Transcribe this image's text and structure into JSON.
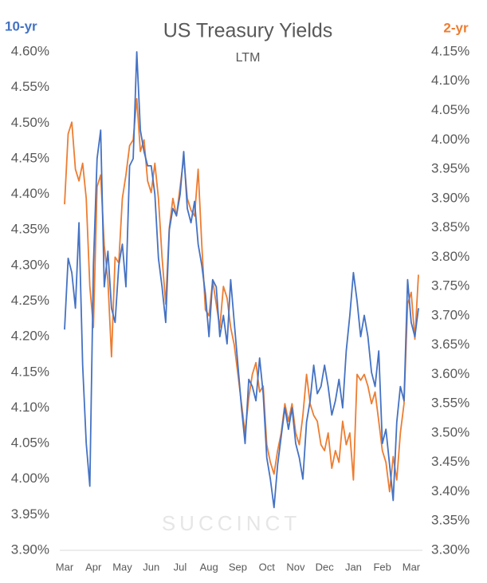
{
  "chart_data": {
    "type": "line",
    "title": "US Treasury Yields",
    "subtitle": "LTM",
    "y_label": "10-yr",
    "y2_label": "2-yr",
    "watermark": "SUCCINCT",
    "categories": [
      "Mar",
      null,
      null,
      null,
      null,
      null,
      null,
      null,
      "Apr",
      null,
      null,
      null,
      null,
      null,
      null,
      null,
      "May",
      null,
      null,
      null,
      null,
      null,
      null,
      null,
      "Jun",
      null,
      null,
      null,
      null,
      null,
      null,
      null,
      "Jul",
      null,
      null,
      null,
      null,
      null,
      null,
      null,
      "Aug",
      null,
      null,
      null,
      null,
      null,
      null,
      null,
      "Sep",
      null,
      null,
      null,
      null,
      null,
      null,
      null,
      "Oct",
      null,
      null,
      null,
      null,
      null,
      null,
      null,
      "Nov",
      null,
      null,
      null,
      null,
      null,
      null,
      null,
      "Dec",
      null,
      null,
      null,
      null,
      null,
      null,
      null,
      "Jan",
      null,
      null,
      null,
      null,
      null,
      null,
      null,
      "Feb",
      null,
      null,
      null,
      null,
      null,
      null,
      null,
      "Mar",
      null,
      null
    ],
    "series": [
      {
        "name": "10-yr",
        "color": "#4472c4",
        "values": [
          4.21,
          4.31,
          4.29,
          4.24,
          4.36,
          4.16,
          4.05,
          3.99,
          4.3,
          4.45,
          4.49,
          4.27,
          4.32,
          4.24,
          4.22,
          4.3,
          4.33,
          4.27,
          4.44,
          4.45,
          4.6,
          4.49,
          4.46,
          4.44,
          4.44,
          4.4,
          4.31,
          4.27,
          4.22,
          4.35,
          4.38,
          4.37,
          4.4,
          4.46,
          4.38,
          4.36,
          4.39,
          4.33,
          4.3,
          4.26,
          4.2,
          4.28,
          4.27,
          4.2,
          4.23,
          4.19,
          4.28,
          4.22,
          4.16,
          4.1,
          4.05,
          4.14,
          4.13,
          4.11,
          4.17,
          4.12,
          4.03,
          4.0,
          3.96,
          4.02,
          4.06,
          4.1,
          4.07,
          4.1,
          4.05,
          4.03,
          4.0,
          4.08,
          4.11,
          4.16,
          4.12,
          4.13,
          4.16,
          4.13,
          4.09,
          4.11,
          4.14,
          4.1,
          4.18,
          4.23,
          4.29,
          4.25,
          4.2,
          4.23,
          4.2,
          4.15,
          4.13,
          4.18,
          4.05,
          4.07,
          4.02,
          3.97,
          4.08,
          4.13,
          4.11,
          4.28,
          4.22,
          4.2,
          4.24
        ]
      },
      {
        "name": "2-yr",
        "color": "#ed7d31",
        "axis": "y2",
        "values": [
          3.89,
          4.01,
          4.03,
          3.95,
          3.93,
          3.96,
          3.9,
          3.75,
          3.68,
          3.92,
          3.94,
          3.82,
          3.76,
          3.63,
          3.8,
          3.79,
          3.9,
          3.94,
          3.99,
          4.0,
          4.07,
          3.98,
          4.0,
          3.93,
          3.91,
          3.96,
          3.9,
          3.8,
          3.72,
          3.85,
          3.9,
          3.87,
          3.92,
          3.97,
          3.9,
          3.88,
          3.87,
          3.95,
          3.82,
          3.71,
          3.7,
          3.76,
          3.72,
          3.68,
          3.75,
          3.73,
          3.68,
          3.65,
          3.6,
          3.55,
          3.5,
          3.56,
          3.6,
          3.62,
          3.57,
          3.58,
          3.48,
          3.45,
          3.43,
          3.47,
          3.5,
          3.55,
          3.52,
          3.55,
          3.5,
          3.48,
          3.53,
          3.6,
          3.55,
          3.53,
          3.52,
          3.48,
          3.47,
          3.5,
          3.44,
          3.47,
          3.45,
          3.52,
          3.48,
          3.5,
          3.42,
          3.6,
          3.59,
          3.6,
          3.58,
          3.55,
          3.57,
          3.52,
          3.47,
          3.45,
          3.4,
          3.46,
          3.42,
          3.5,
          3.55,
          3.72,
          3.74,
          3.66,
          3.77
        ]
      }
    ],
    "ylim": [
      3.9,
      4.6
    ],
    "yticks": [
      {
        "value": 3.9,
        "label": "3.90%"
      },
      {
        "value": 3.95,
        "label": "3.95%"
      },
      {
        "value": 4.0,
        "label": "4.00%"
      },
      {
        "value": 4.05,
        "label": "4.05%"
      },
      {
        "value": 4.1,
        "label": "4.10%"
      },
      {
        "value": 4.15,
        "label": "4.15%"
      },
      {
        "value": 4.2,
        "label": "4.20%"
      },
      {
        "value": 4.25,
        "label": "4.25%"
      },
      {
        "value": 4.3,
        "label": "4.30%"
      },
      {
        "value": 4.35,
        "label": "4.35%"
      },
      {
        "value": 4.4,
        "label": "4.40%"
      },
      {
        "value": 4.45,
        "label": "4.45%"
      },
      {
        "value": 4.5,
        "label": "4.50%"
      },
      {
        "value": 4.55,
        "label": "4.55%"
      },
      {
        "value": 4.6,
        "label": "4.60%"
      }
    ],
    "y2lim": [
      3.3,
      4.15
    ],
    "y2ticks": [
      {
        "value": 3.3,
        "label": "3.30%"
      },
      {
        "value": 3.35,
        "label": "3.35%"
      },
      {
        "value": 3.4,
        "label": "3.40%"
      },
      {
        "value": 3.45,
        "label": "3.45%"
      },
      {
        "value": 3.5,
        "label": "3.50%"
      },
      {
        "value": 3.55,
        "label": "3.55%"
      },
      {
        "value": 3.6,
        "label": "3.60%"
      },
      {
        "value": 3.65,
        "label": "3.65%"
      },
      {
        "value": 3.7,
        "label": "3.70%"
      },
      {
        "value": 3.75,
        "label": "3.75%"
      },
      {
        "value": 3.8,
        "label": "3.80%"
      },
      {
        "value": 3.85,
        "label": "3.85%"
      },
      {
        "value": 3.9,
        "label": "3.90%"
      },
      {
        "value": 3.95,
        "label": "3.95%"
      },
      {
        "value": 4.0,
        "label": "4.00%"
      },
      {
        "value": 4.05,
        "label": "4.05%"
      },
      {
        "value": 4.1,
        "label": "4.10%"
      },
      {
        "value": 4.15,
        "label": "4.15%"
      }
    ],
    "grid": false
  }
}
